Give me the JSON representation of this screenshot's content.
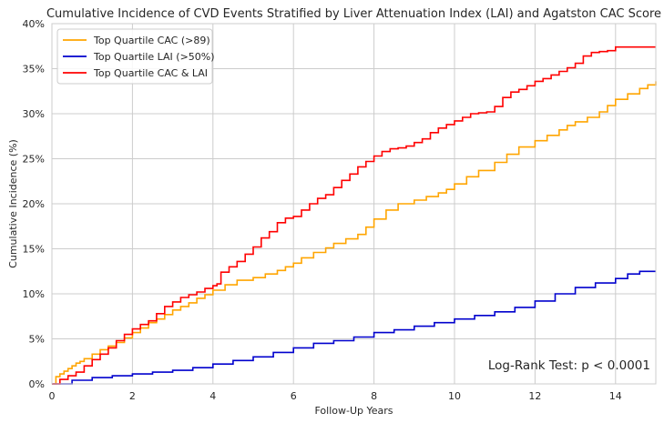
{
  "chart_data": {
    "type": "line",
    "step": true,
    "title": "Cumulative Incidence of CVD Events Stratified by Liver Attenuation Index (LAI) and Agatston CAC Score",
    "xlabel": "Follow-Up Years",
    "ylabel": "Cumulative Incidence (%)",
    "xlim": [
      0,
      15
    ],
    "ylim": [
      0,
      40
    ],
    "x_ticks": [
      0,
      2,
      4,
      6,
      8,
      10,
      12,
      14
    ],
    "x_tick_labels": [
      "0",
      "2",
      "4",
      "6",
      "8",
      "10",
      "12",
      "14"
    ],
    "y_ticks": [
      0,
      5,
      10,
      15,
      20,
      25,
      30,
      35,
      40
    ],
    "y_tick_labels": [
      "0%",
      "5%",
      "10%",
      "15%",
      "20%",
      "25%",
      "30%",
      "35%",
      "40%"
    ],
    "grid": true,
    "legend_position": "top-left",
    "annotation": "Log-Rank Test: p < 0.0001",
    "series": [
      {
        "name": "Top Quartile CAC (>89)",
        "color": "#ffa500",
        "x": [
          0,
          0.1,
          0.2,
          0.3,
          0.4,
          0.5,
          0.6,
          0.7,
          0.8,
          1.0,
          1.2,
          1.4,
          1.6,
          1.8,
          2.0,
          2.2,
          2.4,
          2.6,
          2.8,
          3.0,
          3.2,
          3.4,
          3.6,
          3.8,
          4.0,
          4.3,
          4.6,
          5.0,
          5.3,
          5.6,
          5.8,
          6.0,
          6.2,
          6.5,
          6.8,
          7.0,
          7.3,
          7.6,
          7.8,
          8.0,
          8.3,
          8.6,
          9.0,
          9.3,
          9.6,
          9.8,
          10.0,
          10.3,
          10.6,
          11.0,
          11.3,
          11.6,
          12.0,
          12.3,
          12.6,
          12.8,
          13.0,
          13.3,
          13.6,
          13.8,
          14.0,
          14.3,
          14.6,
          14.8,
          15.0
        ],
        "y": [
          0,
          0.8,
          1.1,
          1.4,
          1.7,
          2.0,
          2.3,
          2.5,
          2.8,
          3.3,
          3.8,
          4.2,
          4.6,
          5.1,
          5.7,
          6.2,
          6.8,
          7.2,
          7.7,
          8.2,
          8.6,
          9.0,
          9.5,
          9.9,
          10.4,
          11.0,
          11.5,
          11.8,
          12.2,
          12.6,
          13.0,
          13.4,
          14.0,
          14.6,
          15.1,
          15.6,
          16.1,
          16.6,
          17.4,
          18.3,
          19.3,
          20.0,
          20.4,
          20.8,
          21.2,
          21.6,
          22.2,
          23.0,
          23.7,
          24.6,
          25.5,
          26.3,
          27.0,
          27.6,
          28.2,
          28.7,
          29.1,
          29.6,
          30.2,
          30.9,
          31.6,
          32.2,
          32.8,
          33.2,
          33.6
        ]
      },
      {
        "name": "Top Quartile LAI (>50%)",
        "color": "#0000cd",
        "x": [
          0,
          0.5,
          1.0,
          1.5,
          2.0,
          2.5,
          3.0,
          3.5,
          4.0,
          4.5,
          5.0,
          5.5,
          6.0,
          6.5,
          7.0,
          7.5,
          8.0,
          8.5,
          9.0,
          9.5,
          10.0,
          10.5,
          11.0,
          11.5,
          12.0,
          12.5,
          13.0,
          13.5,
          14.0,
          14.3,
          14.6,
          15.0
        ],
        "y": [
          0,
          0.4,
          0.7,
          0.9,
          1.1,
          1.3,
          1.5,
          1.8,
          2.2,
          2.6,
          3.0,
          3.5,
          4.0,
          4.5,
          4.8,
          5.2,
          5.7,
          6.0,
          6.4,
          6.8,
          7.2,
          7.6,
          8.0,
          8.5,
          9.2,
          10.0,
          10.7,
          11.2,
          11.7,
          12.2,
          12.5,
          12.5
        ]
      },
      {
        "name": "Top Quartile CAC & LAI",
        "color": "#ff0000",
        "x": [
          0,
          0.2,
          0.4,
          0.6,
          0.8,
          1.0,
          1.2,
          1.4,
          1.6,
          1.8,
          2.0,
          2.2,
          2.4,
          2.6,
          2.8,
          3.0,
          3.2,
          3.4,
          3.6,
          3.8,
          4.0,
          4.1,
          4.2,
          4.4,
          4.6,
          4.8,
          5.0,
          5.2,
          5.4,
          5.6,
          5.8,
          6.0,
          6.2,
          6.4,
          6.6,
          6.8,
          7.0,
          7.2,
          7.4,
          7.6,
          7.8,
          8.0,
          8.2,
          8.4,
          8.6,
          8.8,
          9.0,
          9.2,
          9.4,
          9.6,
          9.8,
          10.0,
          10.2,
          10.4,
          10.6,
          10.8,
          11.0,
          11.2,
          11.4,
          11.6,
          11.8,
          12.0,
          12.2,
          12.4,
          12.6,
          12.8,
          13.0,
          13.2,
          13.4,
          13.6,
          13.8,
          14.0,
          14.5,
          15.0
        ],
        "y": [
          0,
          0.5,
          0.9,
          1.3,
          2.0,
          2.7,
          3.3,
          4.0,
          4.8,
          5.5,
          6.1,
          6.6,
          7.0,
          7.8,
          8.6,
          9.1,
          9.6,
          9.9,
          10.2,
          10.6,
          10.9,
          11.1,
          12.4,
          13.0,
          13.6,
          14.4,
          15.2,
          16.2,
          16.9,
          17.9,
          18.4,
          18.6,
          19.3,
          20.0,
          20.6,
          21.0,
          21.8,
          22.6,
          23.3,
          24.1,
          24.7,
          25.3,
          25.8,
          26.1,
          26.2,
          26.4,
          26.8,
          27.2,
          27.9,
          28.4,
          28.8,
          29.2,
          29.6,
          30.0,
          30.1,
          30.2,
          30.8,
          31.8,
          32.4,
          32.7,
          33.1,
          33.6,
          33.9,
          34.3,
          34.7,
          35.1,
          35.6,
          36.4,
          36.8,
          36.9,
          37.0,
          37.4,
          37.4,
          37.4
        ]
      }
    ]
  }
}
